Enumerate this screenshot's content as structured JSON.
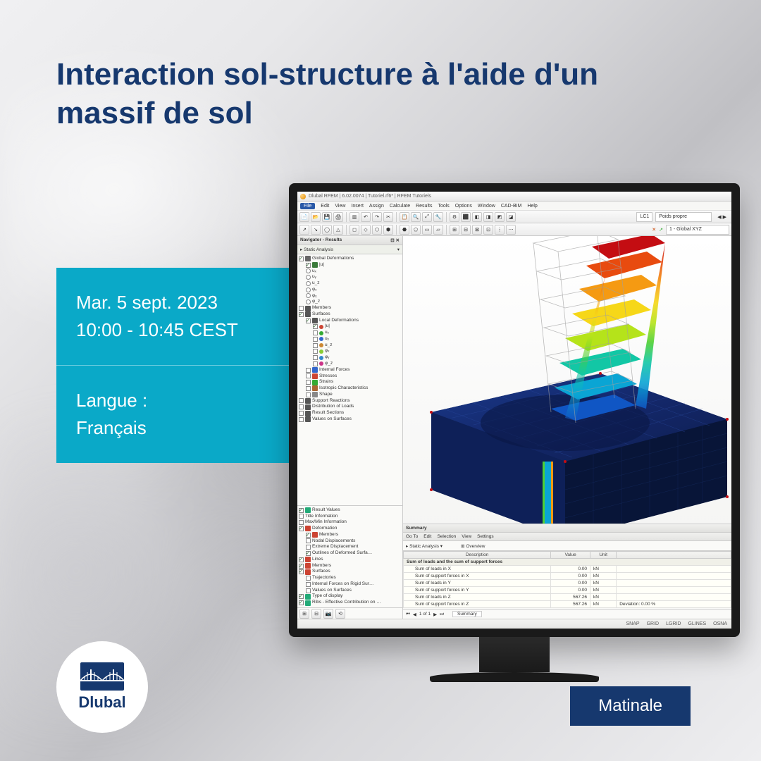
{
  "title": "Interaction sol-structure à l'aide d'un massif de sol",
  "date_line": "Mar. 5 sept. 2023",
  "time_line": "10:00 - 10:45 CEST",
  "lang_label": "Langue :",
  "lang_value": "Français",
  "brand": "Dlubal",
  "category": "Matinale",
  "colors": {
    "title": "#16386e",
    "info_bg": "#0aa9c8",
    "info_text": "#ffffff",
    "badge_bg": "#16386e"
  },
  "app": {
    "window_title": "Dlubal RFEM | 6.02.0074 | Tutoriel.rf6* | RFEM Tutoriels",
    "menus": [
      "File",
      "Edit",
      "View",
      "Insert",
      "Assign",
      "Calculate",
      "Results",
      "Tools",
      "Options",
      "Window",
      "CAD-BIM",
      "Help"
    ],
    "lc_code": "LC1",
    "lc_name": "Poids propre",
    "cs_name": "1 - Global XYZ",
    "toolbar1": [
      "📄",
      "📂",
      "💾",
      "🖨",
      "▥",
      "↶",
      "↷",
      "✂",
      "📋",
      "🔍",
      "⤢",
      "🔧",
      "⚙",
      "⬛",
      "◧",
      "◨",
      "◩",
      "◪"
    ],
    "toolbar2": [
      "↗",
      "↘",
      "◯",
      "△",
      "◻",
      "◇",
      "⬡",
      "⬢",
      "⬣",
      "⬠",
      "▭",
      "▱",
      "⊞",
      "⊟",
      "⊠",
      "⊡",
      "⋮",
      "⋯"
    ],
    "navigator": {
      "title": "Navigator - Results",
      "section": "Static Analysis",
      "tree_top": [
        {
          "label": "Global Deformations",
          "checked": true,
          "indent": 0,
          "icon": "#666"
        },
        {
          "label": "|u|",
          "checked": true,
          "indent": 1,
          "icon": "#3a7a3a"
        },
        {
          "label": "uₓ",
          "checked": false,
          "indent": 1,
          "radio": true
        },
        {
          "label": "uᵧ",
          "checked": false,
          "indent": 1,
          "radio": true
        },
        {
          "label": "u_z",
          "checked": false,
          "indent": 1,
          "radio": true
        },
        {
          "label": "φₓ",
          "checked": false,
          "indent": 1,
          "radio": true
        },
        {
          "label": "φᵧ",
          "checked": false,
          "indent": 1,
          "radio": true
        },
        {
          "label": "φ_z",
          "checked": false,
          "indent": 1,
          "radio": true
        },
        {
          "label": "Members",
          "checked": false,
          "indent": 0,
          "icon": "#555"
        },
        {
          "label": "Surfaces",
          "checked": true,
          "indent": 0,
          "icon": "#555"
        },
        {
          "label": "Local Deformations",
          "checked": true,
          "indent": 1,
          "icon": "#555"
        },
        {
          "label": "|u|",
          "checked": true,
          "indent": 2,
          "color": "#c43"
        },
        {
          "label": "uₓ",
          "checked": false,
          "indent": 2,
          "color": "#3a3"
        },
        {
          "label": "uᵧ",
          "checked": false,
          "indent": 2,
          "color": "#36c"
        },
        {
          "label": "u_z",
          "checked": false,
          "indent": 2,
          "color": "#c83"
        },
        {
          "label": "φₓ",
          "checked": false,
          "indent": 2,
          "color": "#8c3"
        },
        {
          "label": "φᵧ",
          "checked": false,
          "indent": 2,
          "color": "#38c"
        },
        {
          "label": "φ_z",
          "checked": false,
          "indent": 2,
          "color": "#c38"
        },
        {
          "label": "Internal Forces",
          "checked": false,
          "indent": 1,
          "icon": "#36c"
        },
        {
          "label": "Stresses",
          "checked": false,
          "indent": 1,
          "icon": "#c43"
        },
        {
          "label": "Strains",
          "checked": false,
          "indent": 1,
          "icon": "#3a3"
        },
        {
          "label": "Isotropic Characteristics",
          "checked": false,
          "indent": 1,
          "icon": "#a63"
        },
        {
          "label": "Shape",
          "checked": false,
          "indent": 1,
          "icon": "#888"
        },
        {
          "label": "Support Reactions",
          "checked": false,
          "indent": 0,
          "icon": "#555"
        },
        {
          "label": "Distribution of Loads",
          "checked": false,
          "indent": 0,
          "icon": "#555"
        },
        {
          "label": "Result Sections",
          "checked": false,
          "indent": 0,
          "icon": "#555"
        },
        {
          "label": "Values on Surfaces",
          "checked": false,
          "indent": 0,
          "icon": "#555"
        }
      ],
      "tree_bottom": [
        {
          "label": "Result Values",
          "checked": true,
          "indent": 0,
          "icon": "#2a7"
        },
        {
          "label": "Title Information",
          "checked": false,
          "indent": 0
        },
        {
          "label": "Max/Min Information",
          "checked": false,
          "indent": 0
        },
        {
          "label": "Deformation",
          "checked": true,
          "indent": 0,
          "icon": "#c43"
        },
        {
          "label": "Members",
          "checked": true,
          "indent": 1,
          "icon": "#c43"
        },
        {
          "label": "Nodal Displacements",
          "checked": false,
          "indent": 1
        },
        {
          "label": "Extreme Displacement",
          "checked": false,
          "indent": 1
        },
        {
          "label": "Outlines of Deformed Surfa…",
          "checked": true,
          "indent": 1
        },
        {
          "label": "Lines",
          "checked": true,
          "indent": 0,
          "icon": "#c43"
        },
        {
          "label": "Members",
          "checked": true,
          "indent": 0,
          "icon": "#c43"
        },
        {
          "label": "Surfaces",
          "checked": true,
          "indent": 0,
          "icon": "#c43"
        },
        {
          "label": "Trajectories",
          "checked": false,
          "indent": 1
        },
        {
          "label": "Internal Forces on Rigid Sur…",
          "checked": false,
          "indent": 1
        },
        {
          "label": "Values on Surfaces",
          "checked": false,
          "indent": 1
        },
        {
          "label": "Type of display",
          "checked": true,
          "indent": 0,
          "icon": "#2a7"
        },
        {
          "label": "Ribs - Effective Contribution on …",
          "checked": true,
          "indent": 0,
          "icon": "#2a7"
        }
      ],
      "bottom_icons": [
        "⊞",
        "⊟",
        "📷",
        "⟲"
      ]
    },
    "summary": {
      "title": "Summary",
      "tabs": [
        "Go To",
        "Edit",
        "Selection",
        "View",
        "Settings"
      ],
      "analysis": "Static Analysis",
      "overview": "Overview",
      "columns": [
        "Description",
        "Value",
        "Unit",
        ""
      ],
      "section_row": "Sum of loads and the sum of support forces",
      "rows": [
        [
          "Sum of loads in X",
          "0.00",
          "kN",
          ""
        ],
        [
          "Sum of support forces in X",
          "0.00",
          "kN",
          ""
        ],
        [
          "Sum of loads in Y",
          "0.00",
          "kN",
          ""
        ],
        [
          "Sum of support forces in Y",
          "0.00",
          "kN",
          ""
        ],
        [
          "Sum of loads in Z",
          "567.26",
          "kN",
          ""
        ],
        [
          "Sum of support forces in Z",
          "567.26",
          "kN",
          "Deviation: 0.00 %"
        ]
      ],
      "pager": "1 of 1",
      "pager_tab": "Summary"
    },
    "status_items": [
      "SNAP",
      "GRID",
      "LGRID",
      "GLINES",
      "OSNA"
    ]
  },
  "model_colors": {
    "soil_block": "#14286b",
    "soil_shadow": "#0c1a47",
    "gradient_stops": [
      "#c40d12",
      "#e84b0f",
      "#f59a12",
      "#f6d718",
      "#b5e31a",
      "#4dd033",
      "#12c7a5",
      "#0aa5d4",
      "#1056c4"
    ]
  }
}
